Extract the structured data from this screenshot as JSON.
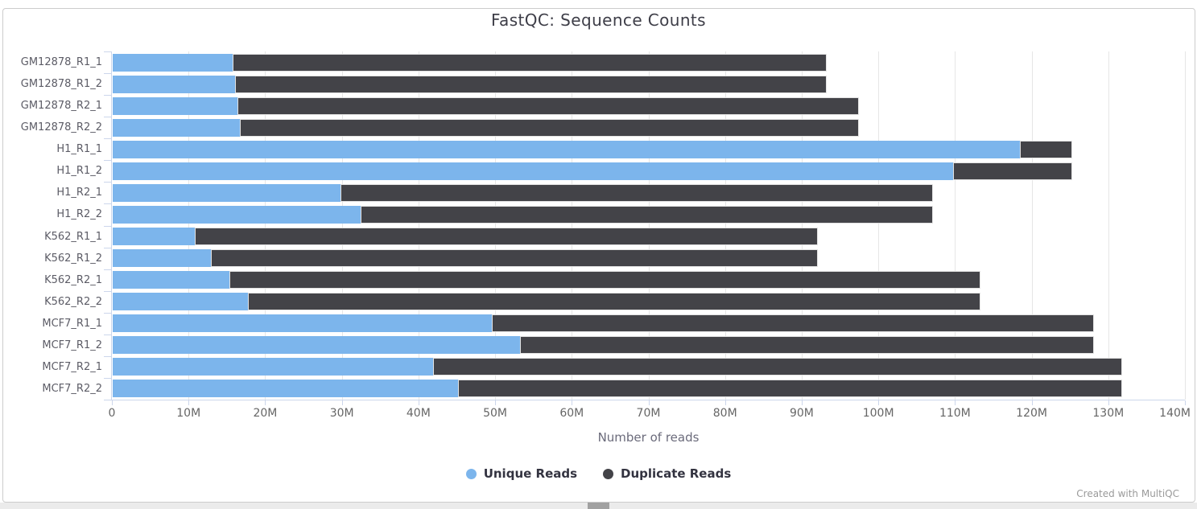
{
  "report": {
    "footer_credit": "Created with MultiQC"
  },
  "chart_data": {
    "type": "bar",
    "orientation": "horizontal",
    "stacked": true,
    "title": "FastQC: Sequence Counts",
    "xlabel": "Number of reads",
    "ylabel": "",
    "xlim_reads": [
      0,
      140000000
    ],
    "x_tick_interval_reads": 10000000,
    "x_tick_labels": [
      "0",
      "10M",
      "20M",
      "30M",
      "40M",
      "50M",
      "60M",
      "70M",
      "80M",
      "90M",
      "100M",
      "110M",
      "120M",
      "130M",
      "140M"
    ],
    "grid": true,
    "legend_position": "bottom",
    "categories": [
      "GM12878_R1_1",
      "GM12878_R1_2",
      "GM12878_R2_1",
      "GM12878_R2_2",
      "H1_R1_1",
      "H1_R1_2",
      "H1_R2_1",
      "H1_R2_2",
      "K562_R1_1",
      "K562_R1_2",
      "K562_R2_1",
      "K562_R2_2",
      "MCF7_R1_1",
      "MCF7_R1_2",
      "MCF7_R2_1",
      "MCF7_R2_2"
    ],
    "series": [
      {
        "name": "Unique Reads",
        "color": "#7cb5ec",
        "values_millions": [
          15.6,
          16.0,
          16.3,
          16.6,
          118.4,
          109.6,
          29.7,
          32.3,
          10.7,
          12.8,
          15.2,
          17.6,
          49.5,
          53.1,
          41.8,
          45.1
        ]
      },
      {
        "name": "Duplicate Reads",
        "color": "#434348",
        "values_millions": [
          77.6,
          77.2,
          81.1,
          80.8,
          6.8,
          15.6,
          77.3,
          74.7,
          81.3,
          79.2,
          98.0,
          95.6,
          78.5,
          74.9,
          89.9,
          86.6
        ]
      }
    ],
    "totals_millions": [
      93.2,
      93.2,
      97.4,
      97.4,
      125.2,
      125.2,
      107.0,
      107.0,
      92.0,
      92.0,
      113.2,
      113.2,
      128.0,
      128.0,
      131.7,
      131.7
    ]
  },
  "colors": {
    "unique_reads": "#7cb5ec",
    "duplicate_reads": "#434348",
    "gridline": "#e6e6e6",
    "axis_line": "#ccd6eb",
    "tick_text": "#666666",
    "category_text": "#5c5c66",
    "title_text": "#3e3e48",
    "legend_text": "#333340",
    "footer_text": "#9a9a9a",
    "page_border": "#cccccc",
    "scrollbar_track": "#ebebeb",
    "scrollbar_thumb": "#a1a1a1"
  }
}
